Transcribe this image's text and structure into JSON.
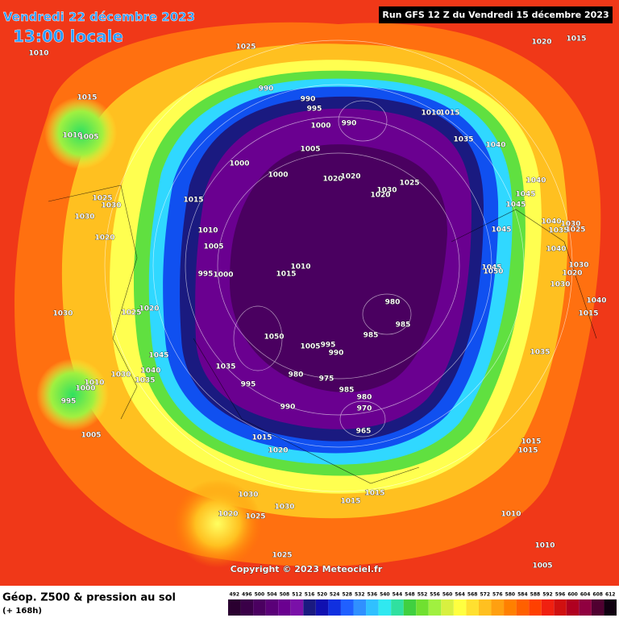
{
  "header": {
    "date": "Vendredi 22 décembre 2023",
    "time": "13:00 locale",
    "run": "Run GFS 12 Z du Vendredi 15 décembre 2023"
  },
  "copyright": "Copyright © 2023 Meteociel.fr",
  "legend": {
    "title": "Géop. Z500 & pression au sol",
    "lead": "(+ 168h)",
    "levels": [
      492,
      496,
      500,
      504,
      508,
      512,
      516,
      520,
      524,
      528,
      532,
      536,
      540,
      544,
      548,
      552,
      556,
      560,
      564,
      568,
      572,
      576,
      580,
      584,
      588,
      592,
      596,
      600,
      604,
      608,
      612
    ],
    "colors": [
      "#2a0030",
      "#3a0048",
      "#4a0060",
      "#5a0078",
      "#6a0090",
      "#7a10a8",
      "#1a1a80",
      "#1010b0",
      "#1030e0",
      "#2060ff",
      "#3090ff",
      "#30c0ff",
      "#30e8f0",
      "#30e0a0",
      "#40d040",
      "#70e030",
      "#a0f040",
      "#d8f040",
      "#ffff40",
      "#ffe030",
      "#ffc020",
      "#ffa010",
      "#ff8000",
      "#ff6000",
      "#ff4000",
      "#f02010",
      "#d01010",
      "#b00020",
      "#900040",
      "#500030",
      "#100010"
    ]
  },
  "pressure_labels": [
    1010,
    1025,
    1020,
    1015,
    1015,
    1010,
    1005,
    990,
    990,
    995,
    1000,
    990,
    1010,
    1015,
    1035,
    1040,
    1005,
    1000,
    1000,
    1020,
    1020,
    1030,
    1025,
    1020,
    1040,
    1045,
    1045,
    1015,
    1025,
    1030,
    1030,
    1020,
    1010,
    1005,
    995,
    1000,
    1015,
    1010,
    1045,
    1040,
    1030,
    1035,
    1025,
    1040,
    1045,
    1050,
    1030,
    1020,
    1030,
    1040,
    1015,
    980,
    985,
    985,
    1030,
    1025,
    1020,
    1050,
    1005,
    995,
    990,
    1045,
    1035,
    1040,
    1035,
    1030,
    1010,
    1000,
    995,
    995,
    980,
    975,
    985,
    980,
    970,
    965,
    990,
    1035,
    1005,
    1015,
    1020,
    1015,
    1015,
    1015,
    1015,
    1030,
    1030,
    1020,
    1025,
    1010,
    1010,
    1025,
    1005
  ]
}
